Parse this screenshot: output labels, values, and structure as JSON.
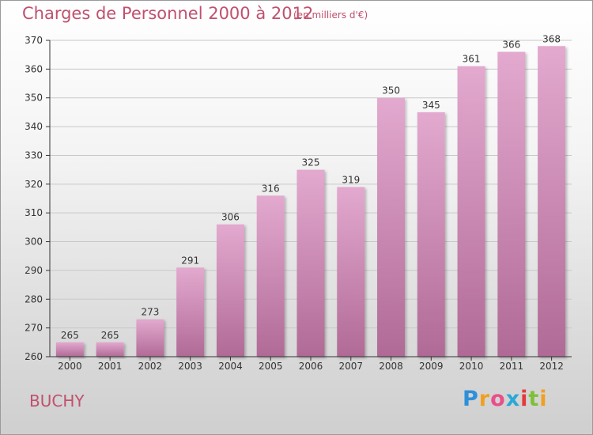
{
  "header": {
    "title": "Charges de Personnel 2000 à 2012",
    "subtitle": "(en milliers d'€)"
  },
  "footer": {
    "commune": "BUCHY",
    "logo": {
      "letters": [
        "P",
        "r",
        "o",
        "x",
        "i",
        "t",
        "i"
      ],
      "colors": [
        "#2f8fd8",
        "#f0a020",
        "#e94f8a",
        "#2aa8d8",
        "#e33b3b",
        "#7fbf3a",
        "#f0a020"
      ]
    }
  },
  "colors": {
    "bar_light": "#e3a9cf",
    "bar_dark": "#b06a96",
    "grid": "#c8c8c8",
    "axis": "#333333",
    "text": "#333333",
    "accent": "#c0506e"
  },
  "chart_data": {
    "type": "bar",
    "categories": [
      "2000",
      "2001",
      "2002",
      "2003",
      "2004",
      "2005",
      "2006",
      "2007",
      "2008",
      "2009",
      "2010",
      "2011",
      "2012"
    ],
    "values": [
      265,
      265,
      273,
      291,
      306,
      316,
      325,
      319,
      350,
      345,
      361,
      366,
      368
    ],
    "title": "Charges de Personnel 2000 à 2012",
    "subtitle": "(en milliers d'€)",
    "ylim": [
      260,
      370
    ],
    "yticks": [
      260,
      270,
      280,
      290,
      300,
      310,
      320,
      330,
      340,
      350,
      360,
      370
    ],
    "grid": true,
    "data_labels": true
  }
}
